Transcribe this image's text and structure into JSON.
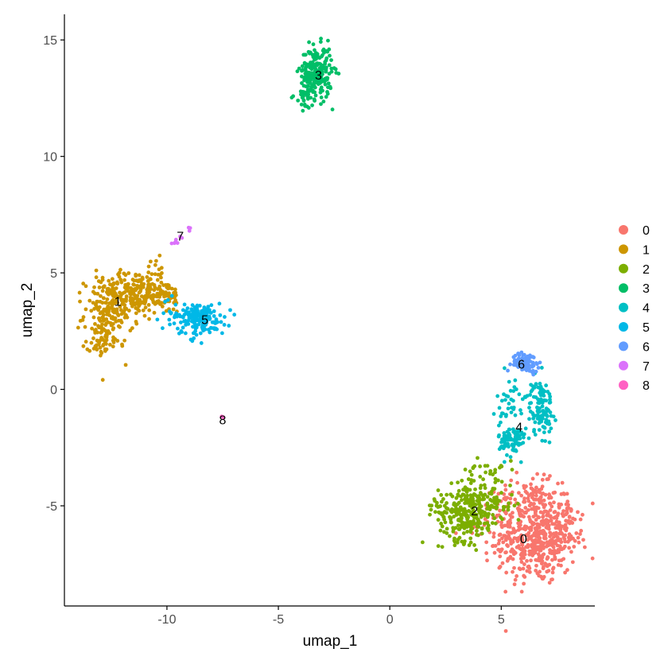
{
  "chart_data": {
    "type": "scatter",
    "title": "",
    "xlabel": "umap_1",
    "ylabel": "umap_2",
    "xlim": [
      -14.6,
      9.2
    ],
    "ylim": [
      -9.3,
      16.1
    ],
    "xticks": [
      -10,
      -5,
      0,
      5
    ],
    "yticks": [
      -5,
      0,
      5,
      10,
      15
    ],
    "xtick_labels": [
      "-10",
      "-5",
      "0",
      "5"
    ],
    "ytick_labels": [
      "-5",
      "0",
      "5",
      "10",
      "15"
    ],
    "grid": false,
    "legend_position": "right",
    "series": [
      {
        "name": "0",
        "color": "#F8766D",
        "label_pos": [
          6.0,
          -6.4
        ],
        "clusters": [
          {
            "cx": 6.6,
            "cy": -6.6,
            "sx": 0.9,
            "sy": 0.9,
            "n": 340
          },
          {
            "cx": 5.8,
            "cy": -5.6,
            "sx": 0.9,
            "sy": 0.8,
            "n": 160
          },
          {
            "cx": 7.6,
            "cy": -5.7,
            "sx": 0.5,
            "sy": 0.6,
            "n": 90
          },
          {
            "cx": 6.6,
            "cy": -4.4,
            "sx": 0.4,
            "sy": 0.5,
            "n": 35
          }
        ]
      },
      {
        "name": "1",
        "color": "#CD9600",
        "label_pos": [
          -12.2,
          3.8
        ],
        "clusters": [
          {
            "cx": -12.6,
            "cy": 3.3,
            "sx": 0.55,
            "sy": 0.75,
            "n": 190
          },
          {
            "cx": -11.4,
            "cy": 4.2,
            "sx": 0.65,
            "sy": 0.45,
            "n": 160
          },
          {
            "cx": -10.2,
            "cy": 4.0,
            "sx": 0.45,
            "sy": 0.35,
            "n": 75
          },
          {
            "cx": -12.9,
            "cy": 2.1,
            "sx": 0.3,
            "sy": 0.3,
            "n": 35
          },
          {
            "cx": -10.5,
            "cy": 5.1,
            "sx": 0.2,
            "sy": 0.25,
            "n": 12
          }
        ]
      },
      {
        "name": "2",
        "color": "#7CAE00",
        "label_pos": [
          3.8,
          -5.2
        ],
        "clusters": [
          {
            "cx": 3.4,
            "cy": -5.3,
            "sx": 0.6,
            "sy": 0.6,
            "n": 240
          },
          {
            "cx": 4.4,
            "cy": -4.9,
            "sx": 0.6,
            "sy": 0.55,
            "n": 90
          },
          {
            "cx": 4.6,
            "cy": -3.4,
            "sx": 0.6,
            "sy": 0.3,
            "n": 22
          },
          {
            "cx": 2.0,
            "cy": -4.9,
            "sx": 0.25,
            "sy": 0.15,
            "n": 10
          }
        ]
      },
      {
        "name": "3",
        "color": "#00BE67",
        "label_pos": [
          -3.2,
          13.5
        ],
        "clusters": [
          {
            "cx": -3.3,
            "cy": 13.6,
            "sx": 0.35,
            "sy": 0.55,
            "n": 230
          },
          {
            "cx": -3.8,
            "cy": 12.6,
            "sx": 0.2,
            "sy": 0.3,
            "n": 30
          }
        ]
      },
      {
        "name": "4",
        "color": "#00BFC4",
        "label_pos": [
          5.8,
          -1.6
        ],
        "clusters": [
          {
            "cx": 6.8,
            "cy": -0.8,
            "sx": 0.25,
            "sy": 0.6,
            "n": 110
          },
          {
            "cx": 5.5,
            "cy": -2.2,
            "sx": 0.3,
            "sy": 0.35,
            "n": 90
          },
          {
            "cx": 5.6,
            "cy": -0.6,
            "sx": 0.4,
            "sy": 0.55,
            "n": 45
          }
        ]
      },
      {
        "name": "5",
        "color": "#00B8E7",
        "label_pos": [
          -8.3,
          3.0
        ],
        "clusters": [
          {
            "cx": -8.5,
            "cy": 3.0,
            "sx": 0.55,
            "sy": 0.35,
            "n": 150
          },
          {
            "cx": -9.6,
            "cy": 3.3,
            "sx": 0.4,
            "sy": 0.3,
            "n": 25
          }
        ]
      },
      {
        "name": "6",
        "color": "#619CFF",
        "label_pos": [
          5.9,
          1.1
        ],
        "clusters": [
          {
            "cx": 6.1,
            "cy": 1.15,
            "sx": 0.3,
            "sy": 0.2,
            "n": 90
          }
        ]
      },
      {
        "name": "7",
        "color": "#DB72FB",
        "label_pos": [
          -9.4,
          6.6
        ],
        "clusters": [
          {
            "line": [
              [
                -9.8,
                6.2
              ],
              [
                -8.9,
                6.9
              ]
            ],
            "n": 12
          }
        ]
      },
      {
        "name": "8",
        "color": "#FF61C3",
        "label_pos": [
          -7.5,
          -1.3
        ],
        "clusters": [
          {
            "cx": -7.5,
            "cy": -1.2,
            "sx": 0.05,
            "sy": 0.05,
            "n": 2
          }
        ]
      }
    ]
  }
}
